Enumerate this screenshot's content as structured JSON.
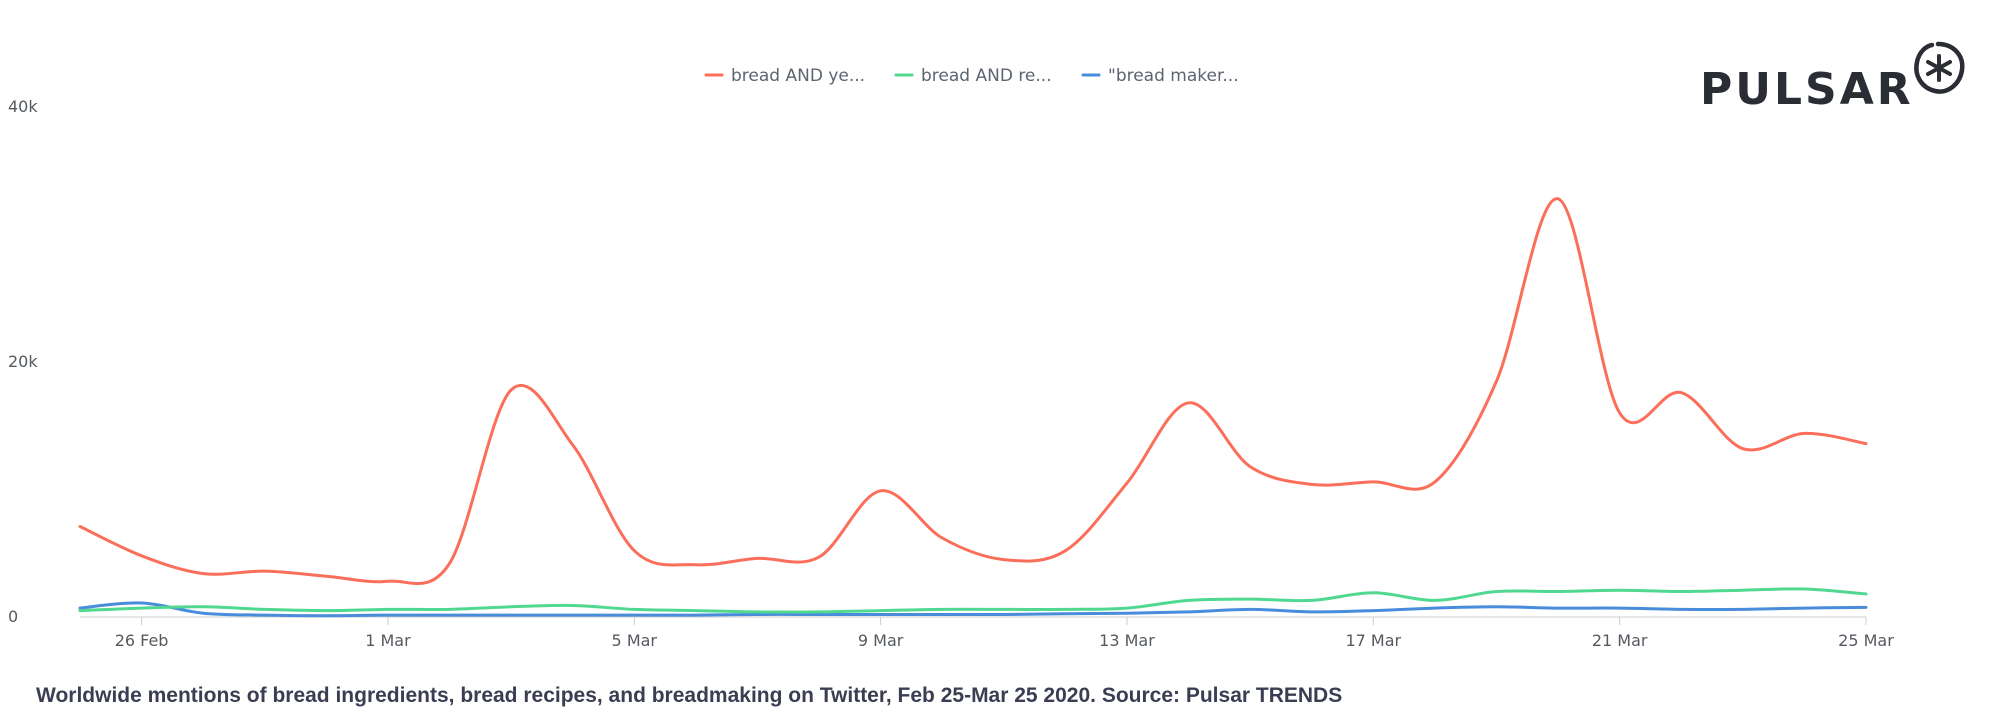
{
  "caption": "Worldwide mentions of bread ingredients, bread recipes, and breadmaking on Twitter, Feb 25-Mar 25 2020. Source: Pulsar TRENDS",
  "logo": {
    "text": "PULSAR"
  },
  "colors": {
    "bread_yeast": "#fa6e5a",
    "bread_recipes": "#50d890",
    "bread_maker": "#4a8cdc",
    "grid": "#e6e6e6",
    "axis": "#cccccc"
  },
  "chart_data": {
    "type": "line",
    "title": "",
    "xlabel": "",
    "ylabel": "",
    "ylim": [
      0,
      40000
    ],
    "grid": false,
    "legend_position": "top",
    "x": [
      "25 Feb",
      "26 Feb",
      "27 Feb",
      "28 Feb",
      "29 Feb",
      "1 Mar",
      "2 Mar",
      "3 Mar",
      "4 Mar",
      "5 Mar",
      "6 Mar",
      "7 Mar",
      "8 Mar",
      "9 Mar",
      "10 Mar",
      "11 Mar",
      "12 Mar",
      "13 Mar",
      "14 Mar",
      "15 Mar",
      "16 Mar",
      "17 Mar",
      "18 Mar",
      "19 Mar",
      "20 Mar",
      "21 Mar",
      "22 Mar",
      "23 Mar",
      "24 Mar",
      "25 Mar"
    ],
    "x_tick_labels": [
      "26 Feb",
      "1 Mar",
      "5 Mar",
      "9 Mar",
      "13 Mar",
      "17 Mar",
      "21 Mar",
      "25 Mar"
    ],
    "x_tick_indices": [
      1,
      5,
      9,
      13,
      17,
      21,
      25,
      29
    ],
    "y_ticks": [
      0,
      20000,
      40000
    ],
    "y_tick_labels": [
      "0",
      "20k",
      "40k"
    ],
    "series": [
      {
        "name": "bread AND ye...",
        "color_key": "bread_yeast",
        "values": [
          7100,
          4800,
          3400,
          3600,
          3200,
          2800,
          4200,
          17800,
          13500,
          5200,
          4100,
          4600,
          4700,
          9900,
          6200,
          4500,
          5200,
          10500,
          16800,
          11800,
          10400,
          10600,
          10600,
          18500,
          32800,
          16000,
          17600,
          13200,
          14400,
          13600
        ]
      },
      {
        "name": "bread AND re...",
        "color_key": "bread_recipes",
        "values": [
          500,
          700,
          800,
          600,
          500,
          600,
          600,
          800,
          900,
          600,
          500,
          400,
          400,
          500,
          600,
          600,
          600,
          700,
          1300,
          1400,
          1300,
          1900,
          1300,
          2000,
          2000,
          2100,
          2000,
          2100,
          2200,
          1800
        ]
      },
      {
        "name": "\"bread maker...",
        "color_key": "bread_maker",
        "values": [
          700,
          1100,
          300,
          150,
          100,
          150,
          150,
          150,
          150,
          150,
          150,
          200,
          200,
          200,
          200,
          200,
          250,
          300,
          400,
          600,
          400,
          500,
          700,
          800,
          700,
          700,
          600,
          600,
          700,
          750
        ]
      }
    ]
  }
}
